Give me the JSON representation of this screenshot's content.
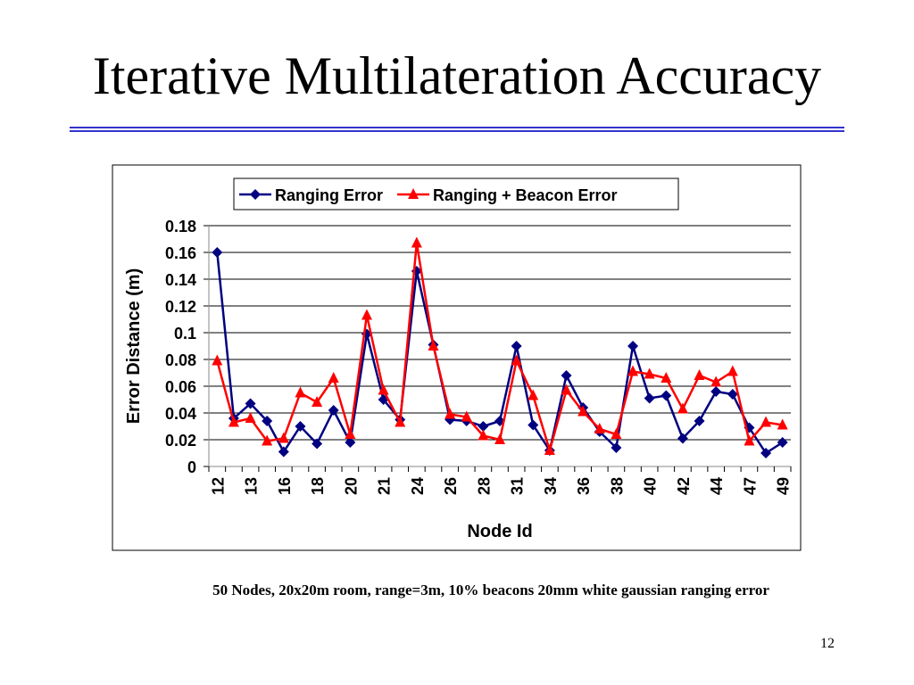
{
  "title": "Iterative Multilateration Accuracy",
  "chart_data": {
    "type": "line",
    "y_label": "Error Distance (m)",
    "x_label": "Node Id",
    "categories": [
      "12",
      null,
      "13",
      null,
      "16",
      null,
      "18",
      null,
      "20",
      null,
      "21",
      null,
      "24",
      null,
      "26",
      null,
      "28",
      null,
      "31",
      null,
      "34",
      null,
      "36",
      null,
      "38",
      null,
      "40",
      null,
      "42",
      null,
      "44",
      null,
      "47",
      null,
      "49"
    ],
    "series": [
      {
        "name": "Ranging Error",
        "color": "#000080",
        "marker": "diamond",
        "values": [
          0.16,
          0.036,
          0.047,
          0.034,
          0.011,
          0.03,
          0.017,
          0.042,
          0.018,
          0.099,
          0.05,
          0.035,
          0.146,
          0.091,
          0.035,
          0.034,
          0.03,
          0.034,
          0.09,
          0.031,
          0.012,
          0.068,
          0.044,
          0.026,
          0.014,
          0.09,
          0.051,
          0.053,
          0.021,
          0.034,
          0.056,
          0.054,
          0.029,
          0.01,
          0.018
        ]
      },
      {
        "name": "Ranging + Beacon Error",
        "color": "#ff0000",
        "marker": "triangle",
        "values": [
          0.079,
          0.033,
          0.036,
          0.019,
          0.021,
          0.055,
          0.048,
          0.066,
          0.024,
          0.113,
          0.057,
          0.033,
          0.167,
          0.09,
          0.039,
          0.037,
          0.023,
          0.02,
          0.079,
          0.053,
          0.012,
          0.057,
          0.041,
          0.028,
          0.024,
          0.071,
          0.069,
          0.066,
          0.043,
          0.068,
          0.063,
          0.071,
          0.019,
          0.033,
          0.031
        ]
      }
    ],
    "ylim": [
      0,
      0.18
    ],
    "yticks": [
      0,
      0.02,
      0.04,
      0.06,
      0.08,
      0.1,
      0.12,
      0.14,
      0.16,
      0.18
    ],
    "grid": true,
    "legend": "top"
  },
  "caption": "50 Nodes, 20x20m room, range=3m, 10% beacons  20mm white gaussian ranging error",
  "page_number": "12"
}
